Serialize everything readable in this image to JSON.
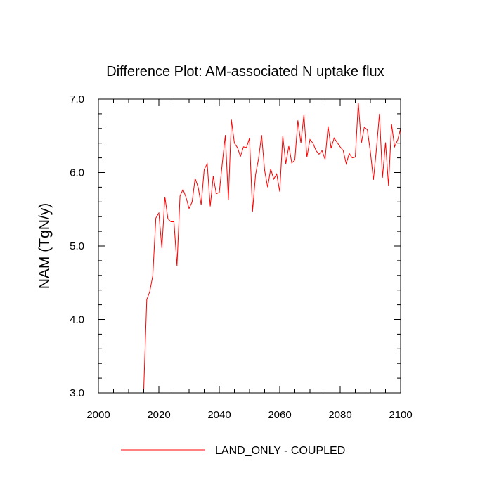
{
  "chart_data": {
    "type": "line",
    "title": "Difference Plot: AM-associated N uptake flux",
    "xlabel": "",
    "ylabel": "NAM  (TgN/y)",
    "xlim": [
      2000,
      2100
    ],
    "ylim": [
      3.0,
      7.0
    ],
    "x_ticks": [
      2000,
      2020,
      2040,
      2060,
      2080,
      2100
    ],
    "x_tick_labels": [
      "2000",
      "2020",
      "2040",
      "2060",
      "2080",
      "2100"
    ],
    "y_ticks": [
      3.0,
      4.0,
      5.0,
      6.0,
      7.0
    ],
    "y_tick_labels": [
      "3.0",
      "4.0",
      "5.0",
      "6.0",
      "7.0"
    ],
    "grid": false,
    "legend_position": "bottom-center",
    "series": [
      {
        "name": "LAND_ONLY - COUPLED",
        "color": "#ff0000",
        "x": [
          2015,
          2016,
          2017,
          2018,
          2019,
          2020,
          2021,
          2022,
          2023,
          2024,
          2025,
          2026,
          2027,
          2028,
          2029,
          2030,
          2031,
          2032,
          2033,
          2034,
          2035,
          2036,
          2037,
          2038,
          2039,
          2040,
          2041,
          2042,
          2043,
          2044,
          2045,
          2046,
          2047,
          2048,
          2049,
          2050,
          2051,
          2052,
          2053,
          2054,
          2055,
          2056,
          2057,
          2058,
          2059,
          2060,
          2061,
          2062,
          2063,
          2064,
          2065,
          2066,
          2067,
          2068,
          2069,
          2070,
          2071,
          2072,
          2073,
          2074,
          2075,
          2076,
          2077,
          2078,
          2079,
          2080,
          2081,
          2082,
          2083,
          2084,
          2085,
          2086,
          2087,
          2088,
          2089,
          2090,
          2091,
          2092,
          2093,
          2094,
          2095,
          2096,
          2097,
          2098,
          2099,
          2100
        ],
        "values": [
          3.05,
          4.27,
          4.38,
          4.6,
          5.38,
          5.45,
          4.97,
          5.67,
          5.37,
          5.33,
          5.33,
          4.73,
          5.68,
          5.77,
          5.66,
          5.51,
          5.6,
          5.92,
          5.8,
          5.56,
          6.04,
          6.12,
          5.54,
          5.95,
          5.71,
          5.73,
          6.13,
          6.51,
          5.63,
          6.72,
          6.4,
          6.34,
          6.22,
          6.35,
          6.34,
          6.47,
          5.47,
          5.97,
          6.19,
          6.51,
          6.03,
          5.8,
          6.05,
          5.91,
          5.98,
          5.74,
          6.5,
          6.12,
          6.36,
          6.13,
          6.17,
          6.71,
          6.4,
          6.79,
          6.21,
          6.45,
          6.4,
          6.3,
          6.25,
          6.3,
          6.18,
          6.63,
          6.33,
          6.47,
          6.41,
          6.35,
          6.3,
          6.12,
          6.26,
          6.2,
          6.21,
          6.95,
          6.4,
          6.62,
          6.58,
          6.28,
          5.9,
          6.32,
          6.8,
          5.93,
          6.41,
          5.82,
          6.66,
          6.35,
          6.44,
          6.6
        ]
      }
    ]
  }
}
